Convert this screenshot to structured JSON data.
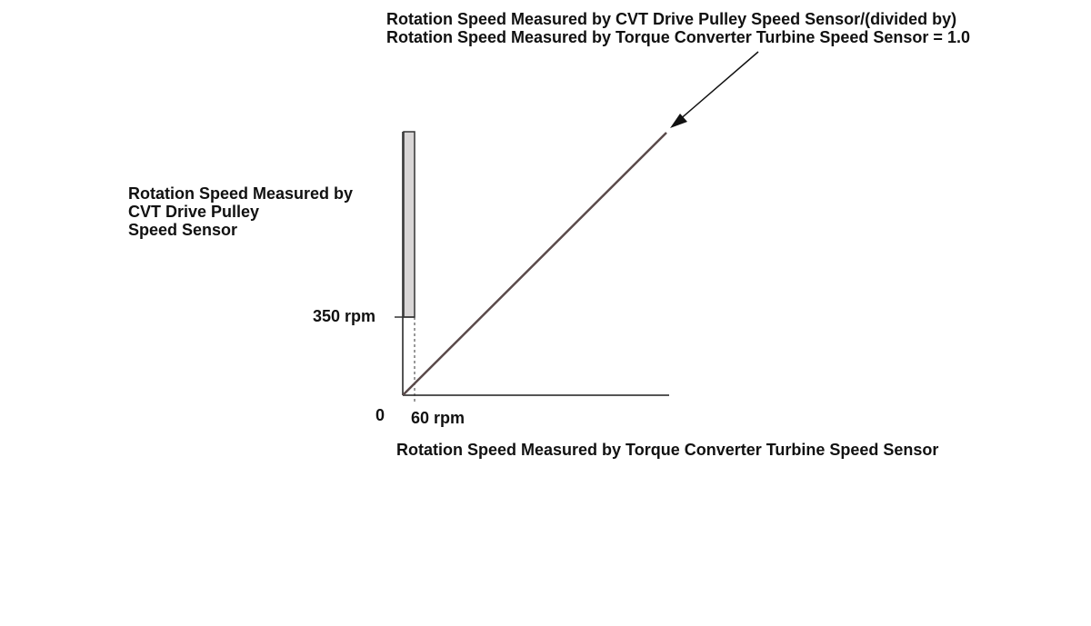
{
  "annotation": {
    "lines": [
      "Rotation Speed Measured by CVT Drive Pulley Speed Sensor/(divided by)",
      "Rotation Speed Measured by Torque Converter Turbine Speed Sensor = 1.0"
    ]
  },
  "y_axis": {
    "title_lines": [
      "Rotation Speed Measured by",
      "CVT Drive Pulley",
      "Speed Sensor"
    ],
    "tick_label": "350 rpm"
  },
  "x_axis": {
    "title": "Rotation Speed Measured by Torque Converter Turbine Speed Sensor",
    "tick_label": "60 rpm",
    "origin_label": "0"
  },
  "colors": {
    "axis": "#555555",
    "ratio_line": "#5a4a4a",
    "band_fill": "#d9d6d6",
    "band_stroke": "#333333",
    "arrow": "#111111"
  }
}
